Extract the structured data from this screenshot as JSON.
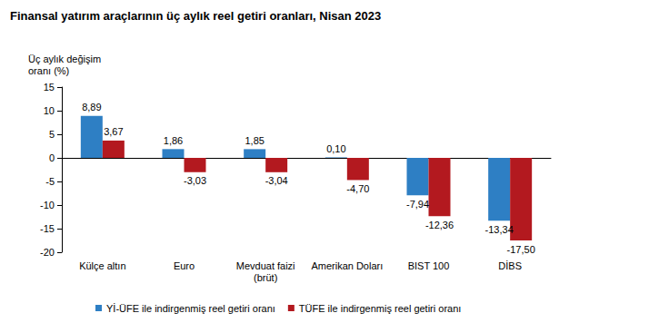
{
  "chart_data": {
    "type": "bar",
    "title": "Finansal yatırım araçlarının üç aylık reel getiri oranları, Nisan 2023",
    "ylabel": "Üç aylık değişim\noranı (%)",
    "categories": [
      "Külçe altın",
      "Euro",
      "Mevduat faizi\n(brüt)",
      "Amerikan Doları",
      "BIST 100",
      "DİBS"
    ],
    "series": [
      {
        "name": "Yİ-ÜFE ile indirgenmiş reel getiri oranı",
        "color": "#2e7fc4",
        "values": [
          8.89,
          1.86,
          1.85,
          0.1,
          -7.94,
          -13.34
        ],
        "value_labels": [
          "8,89",
          "1,86",
          "1,85",
          "0,10",
          "-7,94",
          "-13,34"
        ]
      },
      {
        "name": "TÜFE ile indirgenmiş reel getiri oranı",
        "color": "#b3191f",
        "values": [
          3.67,
          -3.03,
          -3.04,
          -4.7,
          -12.36,
          -17.5
        ],
        "value_labels": [
          "3,67",
          "-3,03",
          "-3,04",
          "-4,70",
          "-12,36",
          "-17,50"
        ]
      }
    ],
    "ylim": [
      -20,
      15
    ],
    "yticks": [
      -20,
      -15,
      -10,
      -5,
      0,
      5,
      10,
      15
    ],
    "grid": false,
    "legend": "bottom",
    "data_labels": true
  }
}
